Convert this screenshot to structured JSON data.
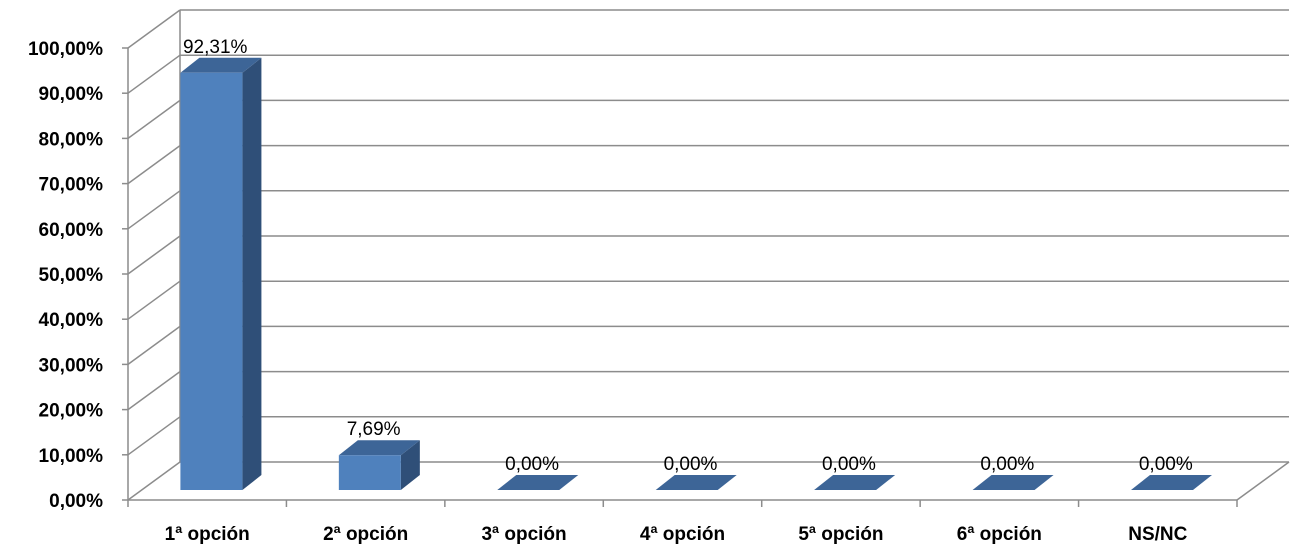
{
  "chart_data": {
    "type": "bar",
    "style": "3d-column",
    "title": "",
    "xlabel": "",
    "ylabel": "",
    "categories": [
      "1ª opción",
      "2ª opción",
      "3ª opción",
      "4ª opción",
      "5ª opción",
      "6ª opción",
      "NS/NC"
    ],
    "values": [
      92.31,
      7.69,
      0,
      0,
      0,
      0,
      0
    ],
    "data_labels": [
      "92,31%",
      "7,69%",
      "0,00%",
      "0,00%",
      "0,00%",
      "0,00%",
      "0,00%"
    ],
    "ylim": [
      0,
      100
    ],
    "y_ticks": [
      0,
      10,
      20,
      30,
      40,
      50,
      60,
      70,
      80,
      90,
      100
    ],
    "y_tick_labels": [
      "0,00%",
      "10,00%",
      "20,00%",
      "30,00%",
      "40,00%",
      "50,00%",
      "60,00%",
      "70,00%",
      "80,00%",
      "90,00%",
      "100,00%"
    ],
    "grid": true,
    "legend": "none",
    "colors": {
      "bar_front": "#4f81bd",
      "bar_side": "#2f4f78",
      "bar_top": "#3d6597",
      "grid": "#8c8c8c",
      "axis": "#8c8c8c"
    }
  }
}
